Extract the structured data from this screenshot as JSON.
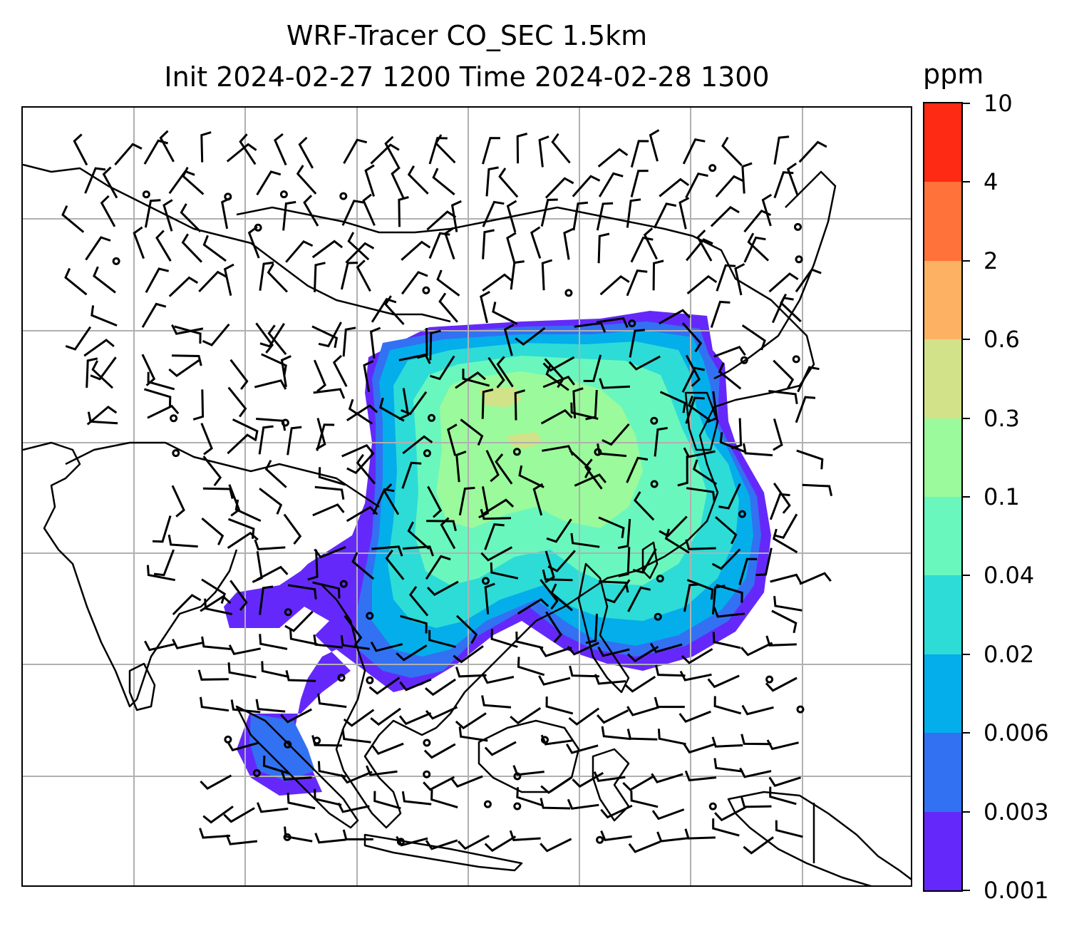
{
  "title": {
    "line1": "WRF-Tracer CO_SEC 1.5km",
    "line2": "Init 2024-02-27 1200 Time 2024-02-28 1300"
  },
  "colorbar": {
    "unit": "ppm",
    "ticks": [
      "0.001",
      "0.003",
      "0.006",
      "0.02",
      "0.04",
      "0.1",
      "0.3",
      "0.6",
      "2",
      "4",
      "10"
    ],
    "colors": [
      "#6429fa",
      "#3271f2",
      "#04aeea",
      "#2ddcd6",
      "#6af7bd",
      "#9bfa9b",
      "#d1e288",
      "#fcb262",
      "#ff7239",
      "#fe2a13"
    ]
  },
  "map": {
    "region": "South and East Asia",
    "gridlines": true,
    "features": [
      "coastlines",
      "country-borders",
      "wind-barbs",
      "tracer-concentration-fill"
    ]
  }
}
